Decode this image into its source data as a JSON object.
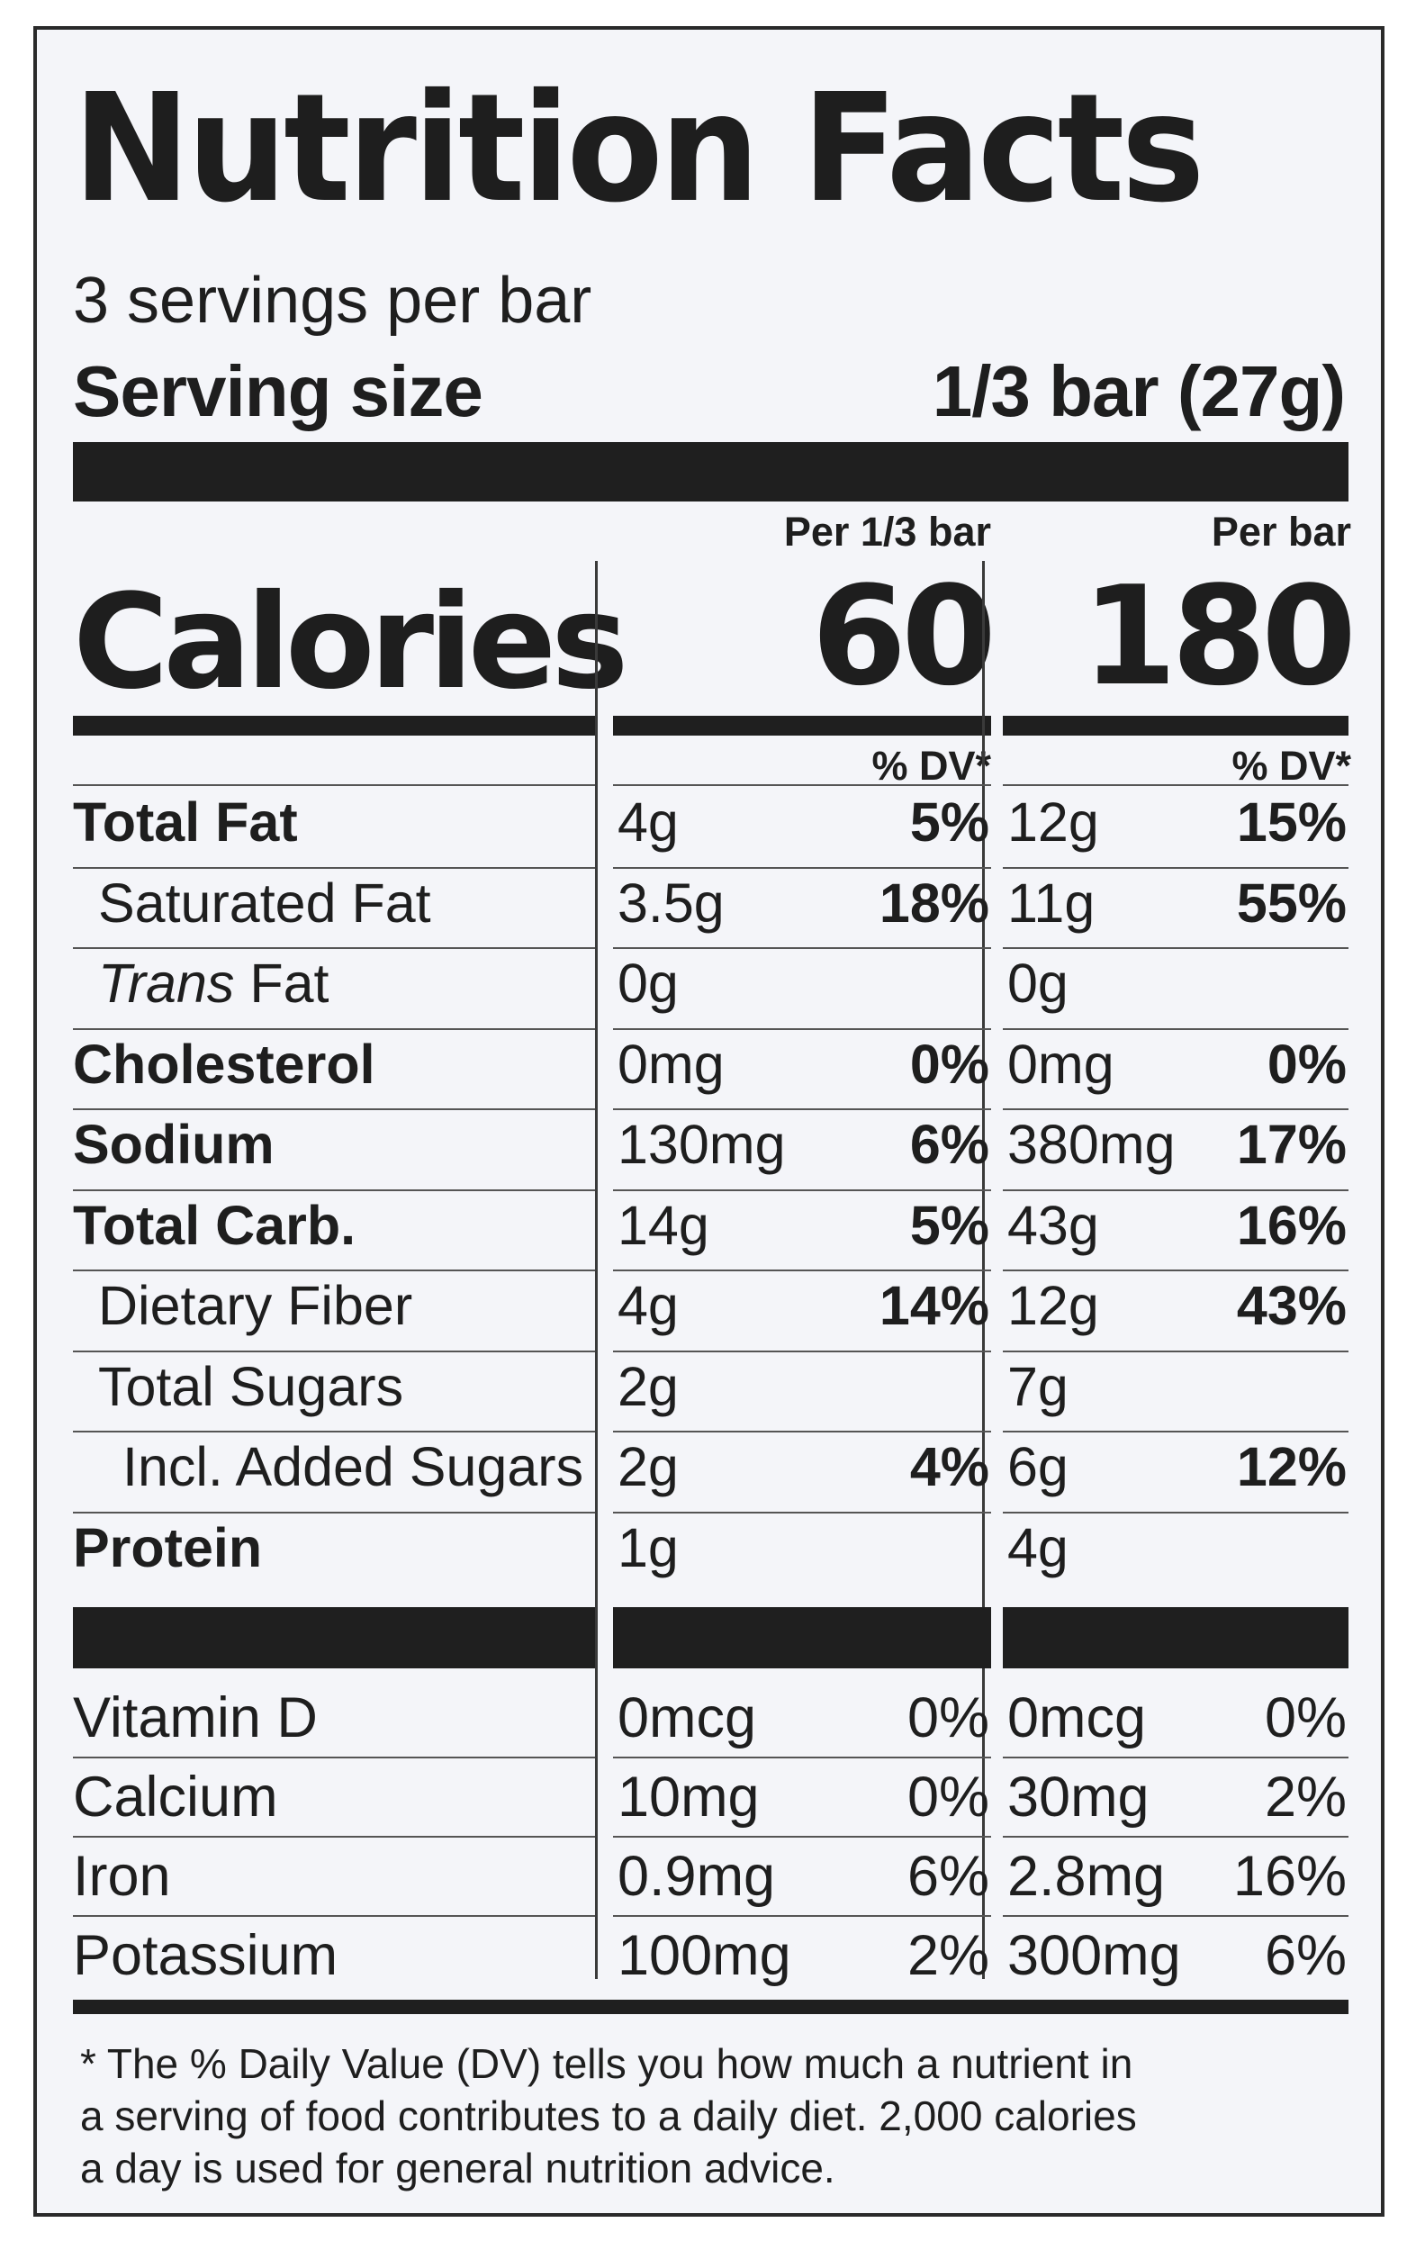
{
  "title": "Nutrition Facts",
  "servings_per_container": "3 servings per bar",
  "serving_size": {
    "label": "Serving size",
    "value": "1/3 bar (27g)"
  },
  "columns": [
    {
      "header": "Per 1/3 bar",
      "calories": "60",
      "dv_header": "% DV*"
    },
    {
      "header": "Per bar",
      "calories": "180",
      "dv_header": "% DV*"
    }
  ],
  "calories_label": "Calories",
  "nutrients": [
    {
      "name": "Total Fat",
      "style": "bold",
      "indent": 0,
      "values": [
        {
          "amount": "4g",
          "dv": "5%"
        },
        {
          "amount": "12g",
          "dv": "15%"
        }
      ]
    },
    {
      "name": "Saturated Fat",
      "style": "normal",
      "indent": 1,
      "values": [
        {
          "amount": "3.5g",
          "dv": "18%"
        },
        {
          "amount": "11g",
          "dv": "55%"
        }
      ]
    },
    {
      "name_italic": "Trans",
      "name": " Fat",
      "style": "normal",
      "indent": 1,
      "values": [
        {
          "amount": "0g",
          "dv": ""
        },
        {
          "amount": "0g",
          "dv": ""
        }
      ]
    },
    {
      "name": "Cholesterol",
      "style": "bold",
      "indent": 0,
      "values": [
        {
          "amount": "0mg",
          "dv": "0%"
        },
        {
          "amount": "0mg",
          "dv": "0%"
        }
      ]
    },
    {
      "name": "Sodium",
      "style": "bold",
      "indent": 0,
      "values": [
        {
          "amount": "130mg",
          "dv": "6%"
        },
        {
          "amount": "380mg",
          "dv": "17%"
        }
      ]
    },
    {
      "name": "Total Carb.",
      "style": "bold",
      "indent": 0,
      "values": [
        {
          "amount": "14g",
          "dv": "5%"
        },
        {
          "amount": "43g",
          "dv": "16%"
        }
      ]
    },
    {
      "name": "Dietary Fiber",
      "style": "normal",
      "indent": 1,
      "values": [
        {
          "amount": "4g",
          "dv": "14%"
        },
        {
          "amount": "12g",
          "dv": "43%"
        }
      ]
    },
    {
      "name": "Total Sugars",
      "style": "normal",
      "indent": 1,
      "values": [
        {
          "amount": "2g",
          "dv": ""
        },
        {
          "amount": "7g",
          "dv": ""
        }
      ]
    },
    {
      "name": "Incl. Added Sugars",
      "style": "normal",
      "indent": 2,
      "values": [
        {
          "amount": "2g",
          "dv": "4%"
        },
        {
          "amount": "6g",
          "dv": "12%"
        }
      ]
    },
    {
      "name": "Protein",
      "style": "bold",
      "indent": 0,
      "values": [
        {
          "amount": "1g",
          "dv": ""
        },
        {
          "amount": "4g",
          "dv": ""
        }
      ]
    }
  ],
  "vitamins": [
    {
      "name": "Vitamin D",
      "values": [
        {
          "amount": "0mcg",
          "dv": "0%"
        },
        {
          "amount": "0mcg",
          "dv": "0%"
        }
      ]
    },
    {
      "name": "Calcium",
      "values": [
        {
          "amount": "10mg",
          "dv": "0%"
        },
        {
          "amount": "30mg",
          "dv": "2%"
        }
      ]
    },
    {
      "name": "Iron",
      "values": [
        {
          "amount": "0.9mg",
          "dv": "6%"
        },
        {
          "amount": "2.8mg",
          "dv": "16%"
        }
      ]
    },
    {
      "name": "Potassium",
      "values": [
        {
          "amount": "100mg",
          "dv": "2%"
        },
        {
          "amount": "300mg",
          "dv": "6%"
        }
      ]
    }
  ],
  "footnote": "* The % Daily Value (DV) tells you how much a nutrient in\na serving of food contributes to a daily diet. 2,000 calories\na day is used for general nutrition advice."
}
